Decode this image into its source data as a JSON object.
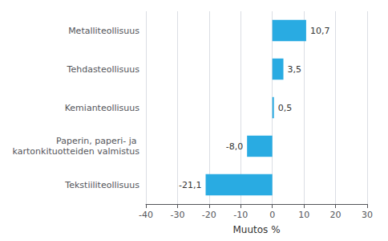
{
  "chart_data": {
    "type": "bar",
    "orientation": "horizontal",
    "categories": [
      "Tekstiiliteollisuus",
      "Paperin, paperi- ja kartonkituotteiden valmistus",
      "Kemianteollisuus",
      "Tehdasteollisuus",
      "Metalliteollisuus"
    ],
    "values": [
      -21.1,
      -8.0,
      0.5,
      3.5,
      10.7
    ],
    "value_labels": [
      "-21,1",
      "-8,0",
      "0,5",
      "3,5",
      "10,7"
    ],
    "data_labels": true,
    "color": "#29abe2",
    "xlabel": "Muutos %",
    "xlim": [
      -40,
      30
    ],
    "xticks": [
      -40,
      -30,
      -20,
      -10,
      0,
      10,
      20,
      30
    ],
    "grid": true
  }
}
